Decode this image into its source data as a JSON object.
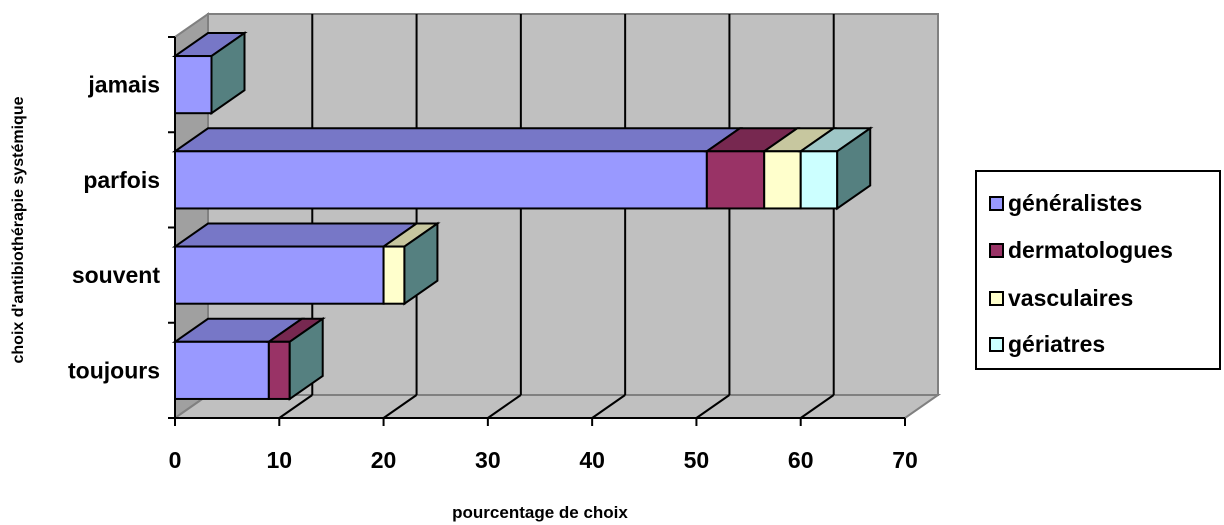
{
  "chart_data": {
    "type": "bar",
    "orientation": "horizontal",
    "stacked": true,
    "three_d": true,
    "categories": [
      "toujours",
      "souvent",
      "parfois",
      "jamais"
    ],
    "series": [
      {
        "name": "généralistes",
        "values": [
          9,
          20,
          51,
          3.5
        ],
        "color": "#9999ff"
      },
      {
        "name": "dermatologues",
        "values": [
          2,
          0,
          5.5,
          0
        ],
        "color": "#993366"
      },
      {
        "name": "vasculaires",
        "values": [
          0,
          2,
          3.5,
          0
        ],
        "color": "#ffffcc"
      },
      {
        "name": "gériatres",
        "values": [
          0,
          0,
          3.5,
          0
        ],
        "color": "#ccffff"
      }
    ],
    "xlabel": "pourcentage de choix",
    "ylabel": "choix d'antibiothérapie systémique",
    "xlim": [
      0,
      70
    ],
    "xticks": [
      "0",
      "10",
      "20",
      "30",
      "40",
      "50",
      "60",
      "70"
    ],
    "grid": true,
    "legend_position": "right"
  }
}
